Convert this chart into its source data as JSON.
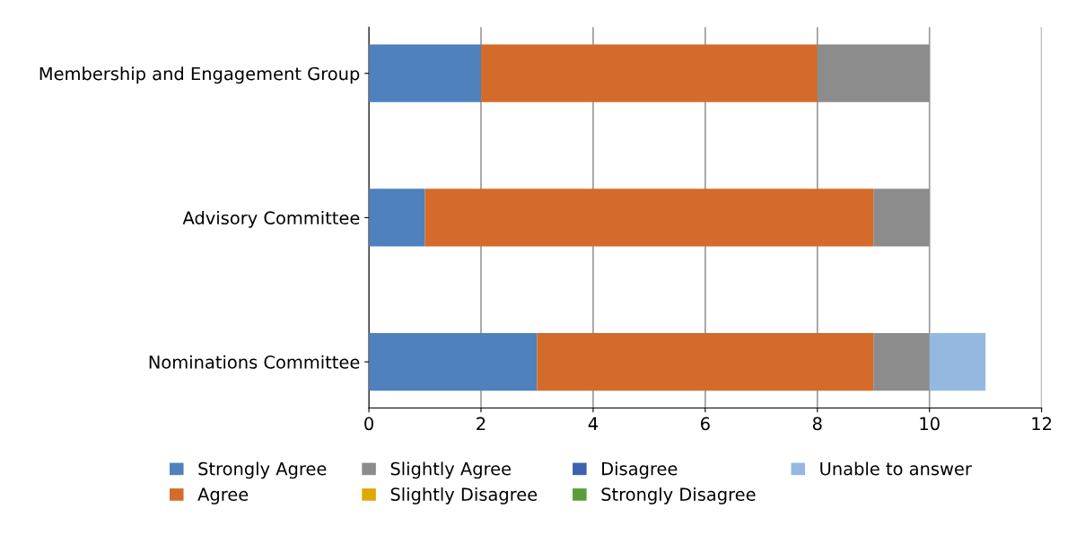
{
  "chart_data": {
    "type": "bar",
    "orientation": "horizontal",
    "stacked": true,
    "categories": [
      "Membership and Engagement Group",
      "Advisory Committee",
      "Nominations Committee"
    ],
    "series": [
      {
        "name": "Strongly Agree",
        "color": "#4f81bd",
        "values": [
          2,
          1,
          3
        ]
      },
      {
        "name": "Agree",
        "color": "#d46b2a",
        "values": [
          6,
          8,
          6
        ]
      },
      {
        "name": "Slightly Agree",
        "color": "#8c8c8c",
        "values": [
          2,
          1,
          1
        ]
      },
      {
        "name": "Slightly Disagree",
        "color": "#e0a800",
        "values": [
          0,
          0,
          0
        ]
      },
      {
        "name": "Disagree",
        "color": "#3a62b0",
        "values": [
          0,
          0,
          0
        ]
      },
      {
        "name": "Strongly Disagree",
        "color": "#5a9e3a",
        "values": [
          0,
          0,
          0
        ]
      },
      {
        "name": "Unable to answer",
        "color": "#95b8e0",
        "values": [
          0,
          0,
          1
        ]
      }
    ],
    "xlim": [
      0,
      12
    ],
    "xticks": [
      0,
      2,
      4,
      6,
      8,
      10,
      12
    ],
    "grid": "x",
    "legend": "bottom"
  }
}
